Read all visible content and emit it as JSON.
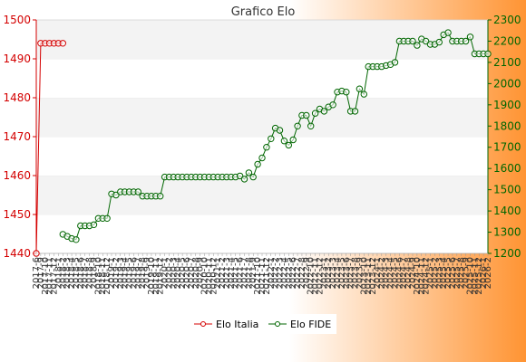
{
  "colors": {
    "bg_left": "#ffffff",
    "bg_right": "#ff9433",
    "band_light": "#f3f3f3",
    "band_white": "#ffffff",
    "italia": "#d40000",
    "fide": "#006600",
    "legend_bg": "#ffffff"
  },
  "chart_data": {
    "type": "line",
    "title": "Grafico Elo",
    "grid": true,
    "legend_position": "bottom",
    "y_left": {
      "min": 1440,
      "max": 1500,
      "ticks": [
        1440,
        1450,
        1460,
        1470,
        1480,
        1490,
        1500
      ]
    },
    "y_right": {
      "min": 1200,
      "max": 2300,
      "ticks": [
        1200,
        1300,
        1400,
        1500,
        1600,
        1700,
        1800,
        1900,
        2000,
        2100,
        2200,
        2300
      ]
    },
    "x_labels": [
      "2017-6",
      "2017-9",
      "2017-10",
      "2017-11",
      "2017-12",
      "2018-1",
      "2018-2",
      "2018-3",
      "2018-4",
      "2018-5",
      "2018-6",
      "2018-7",
      "2018-8",
      "2018-9",
      "2018-10",
      "2018-11",
      "2018-12",
      "2019-1",
      "2019-2",
      "2019-3",
      "2019-4",
      "2019-5",
      "2019-6",
      "2019-7",
      "2019-8",
      "2019-9",
      "2019-10",
      "2019-11",
      "2019-12",
      "2020-1",
      "2020-2",
      "2020-3",
      "2020-4",
      "2020-5",
      "2020-6",
      "2020-7",
      "2020-8",
      "2020-9",
      "2020-10",
      "2020-11",
      "2020-12",
      "2021-1",
      "2021-2",
      "2021-3",
      "2021-4",
      "2021-5",
      "2021-6",
      "2021-7",
      "2021-8",
      "2021-9",
      "2021-10",
      "2021-11",
      "2021-12",
      "2022-1",
      "2022-2",
      "2022-3",
      "2022-4",
      "2022-5",
      "2022-6",
      "2022-7",
      "2022-8",
      "2022-9",
      "2022-10",
      "2022-11",
      "2022-12",
      "2023-1",
      "2023-2",
      "2023-3",
      "2023-4",
      "2023-5",
      "2023-6",
      "2023-7",
      "2023-8",
      "2023-9",
      "2023-10",
      "2023-11",
      "2023-12",
      "2024-1",
      "2024-2",
      "2024-3",
      "2024-4",
      "2024-5",
      "2024-6",
      "2024-7",
      "2024-8",
      "2024-9",
      "2024-10",
      "2024-11",
      "2024-12",
      "2025-1",
      "2025-2",
      "2025-3",
      "2025-4",
      "2025-5",
      "2025-6",
      "2025-7",
      "2025-8",
      "2025-9",
      "2025-10",
      "2025-11",
      "2025-12",
      "2026-1",
      "2026-2"
    ],
    "series": [
      {
        "name": "Elo Italia",
        "axis": "left",
        "values": [
          1440,
          1494,
          1494,
          1494,
          1494,
          1494,
          1494
        ]
      },
      {
        "name": "Elo FIDE",
        "axis": "right",
        "start_index": 6,
        "values": [
          1290,
          1280,
          1270,
          1265,
          1330,
          1330,
          1330,
          1335,
          1365,
          1365,
          1365,
          1480,
          1475,
          1490,
          1490,
          1490,
          1490,
          1490,
          1470,
          1470,
          1470,
          1470,
          1470,
          1560,
          1560,
          1560,
          1560,
          1560,
          1560,
          1560,
          1560,
          1560,
          1560,
          1560,
          1560,
          1560,
          1560,
          1560,
          1560,
          1560,
          1565,
          1550,
          1580,
          1560,
          1620,
          1650,
          1700,
          1740,
          1790,
          1780,
          1730,
          1710,
          1735,
          1800,
          1850,
          1850,
          1800,
          1860,
          1880,
          1870,
          1890,
          1900,
          1960,
          1965,
          1960,
          1870,
          1870,
          1975,
          1950,
          2080,
          2080,
          2080,
          2080,
          2085,
          2090,
          2100,
          2200,
          2200,
          2200,
          2200,
          2180,
          2210,
          2200,
          2185,
          2185,
          2195,
          2230,
          2240,
          2200,
          2200,
          2200,
          2200,
          2220,
          2140,
          2140,
          2140,
          2140
        ]
      }
    ]
  }
}
